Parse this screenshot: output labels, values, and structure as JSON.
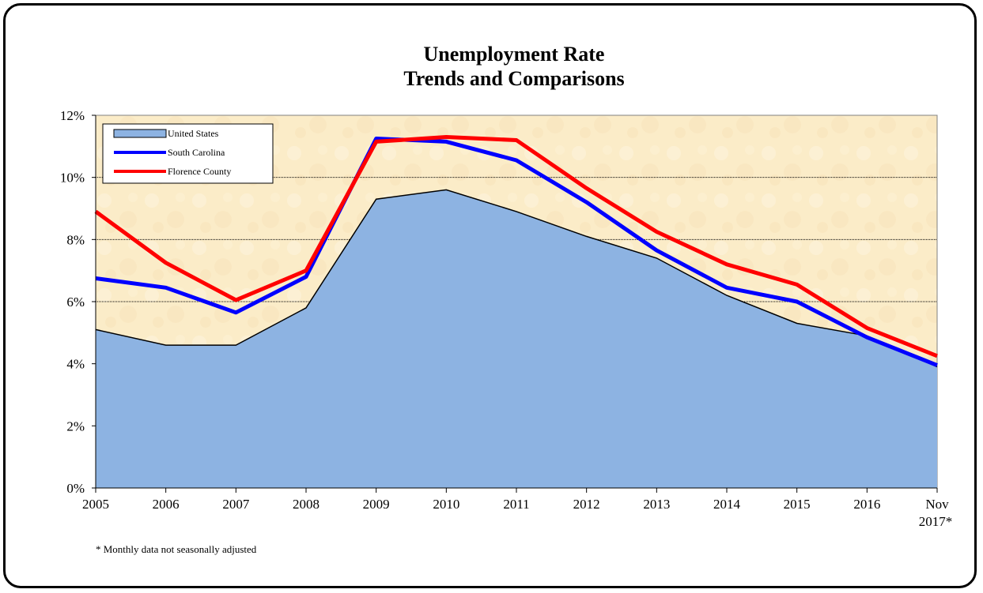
{
  "chart_data": {
    "type": "area",
    "title_lines": [
      "Unemployment Rate",
      "Trends and Comparisons"
    ],
    "categories": [
      "2005",
      "2006",
      "2007",
      "2008",
      "2009",
      "2010",
      "2011",
      "2012",
      "2013",
      "2014",
      "2015",
      "2016",
      "Nov 2017*"
    ],
    "category_labels": [
      [
        "2005"
      ],
      [
        "2006"
      ],
      [
        "2007"
      ],
      [
        "2008"
      ],
      [
        "2009"
      ],
      [
        "2010"
      ],
      [
        "2011"
      ],
      [
        "2012"
      ],
      [
        "2013"
      ],
      [
        "2014"
      ],
      [
        "2015"
      ],
      [
        "2016"
      ],
      [
        "Nov",
        "2017*"
      ]
    ],
    "ylim": [
      0,
      12
    ],
    "yticks": [
      0,
      2,
      4,
      6,
      8,
      10,
      12
    ],
    "ytick_labels": [
      "0%",
      "2%",
      "4%",
      "6%",
      "8%",
      "10%",
      "12%"
    ],
    "gridlines": [
      6,
      8,
      10
    ],
    "legend_position": "top-left",
    "series": [
      {
        "name": "United States",
        "type": "area",
        "color": "#8db3e2",
        "values": [
          5.1,
          4.6,
          4.6,
          5.8,
          9.3,
          9.6,
          8.9,
          8.1,
          7.4,
          6.2,
          5.3,
          4.9,
          3.9
        ]
      },
      {
        "name": "South Carolina",
        "type": "line",
        "color": "#0000ff",
        "values": [
          6.75,
          6.45,
          5.65,
          6.8,
          11.25,
          11.15,
          10.55,
          9.2,
          7.65,
          6.45,
          6.0,
          4.85,
          3.95
        ]
      },
      {
        "name": "Florence County",
        "type": "line",
        "color": "#ff0000",
        "values": [
          8.9,
          7.25,
          6.05,
          7.0,
          11.15,
          11.3,
          11.2,
          9.65,
          8.25,
          7.2,
          6.55,
          5.15,
          4.25
        ]
      }
    ],
    "footnote": "* Monthly data not seasonally adjusted"
  }
}
